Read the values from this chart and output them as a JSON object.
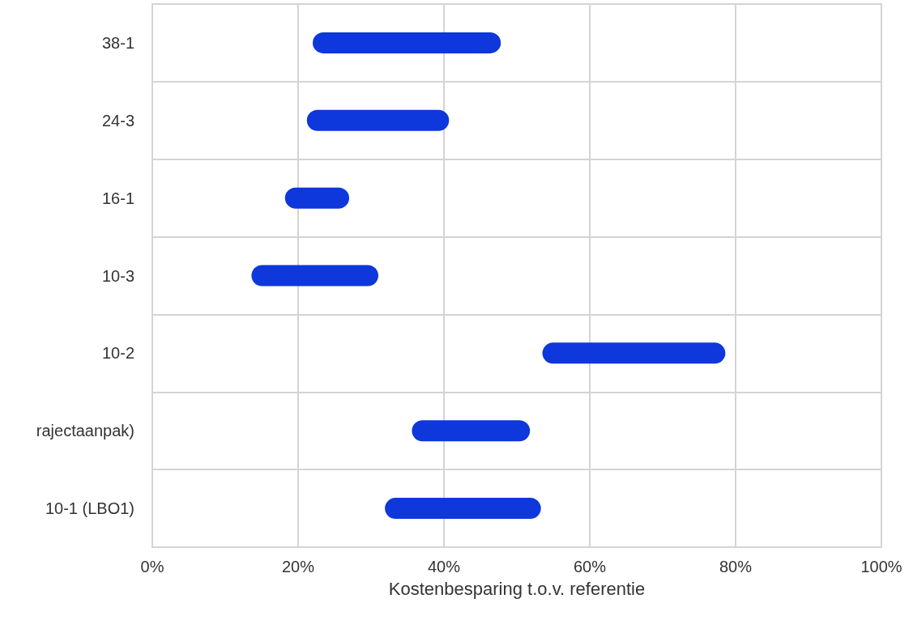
{
  "chart_data": {
    "type": "bar",
    "orientation": "horizontal",
    "xlabel": "Kostenbesparing t.o.v. referentie",
    "categories": [
      "38-1",
      "24-3",
      "16-1",
      "10-3",
      "10-2",
      "rajectaanpak)",
      "10-1 (LBO1)"
    ],
    "base": [
      22.0,
      21.2,
      18.2,
      13.6,
      53.5,
      35.6,
      31.9
    ],
    "values": [
      25.8,
      19.5,
      8.8,
      17.4,
      25.1,
      16.2,
      21.4
    ],
    "color": "#0e37dc",
    "xlim": [
      0,
      100
    ],
    "xticks": [
      {
        "value": 0,
        "label": "0%"
      },
      {
        "value": 20,
        "label": "20%"
      },
      {
        "value": 40,
        "label": "40%"
      },
      {
        "value": 60,
        "label": "60%"
      },
      {
        "value": 80,
        "label": "80%"
      },
      {
        "value": 100,
        "label": "100%"
      }
    ],
    "grid": true
  }
}
